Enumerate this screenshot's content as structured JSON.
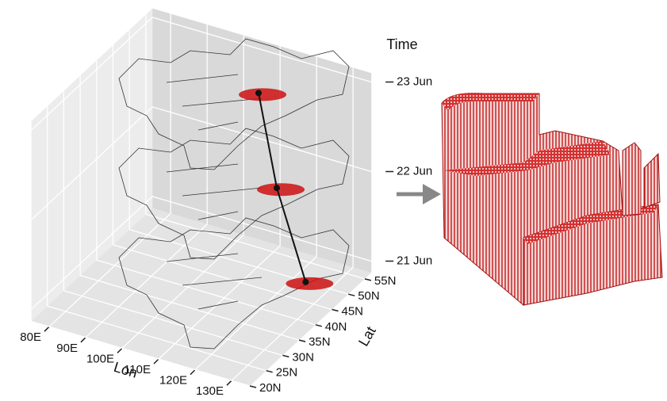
{
  "chart_data": {
    "type": "trajectory3d",
    "xlabel": "Lon",
    "ylabel": "Lat",
    "zlabel": "Time",
    "xlim": [
      75,
      135
    ],
    "xticks": [
      {
        "value": 80,
        "label": "80E"
      },
      {
        "value": 90,
        "label": "90E"
      },
      {
        "value": 100,
        "label": "100E"
      },
      {
        "value": 110,
        "label": "110E"
      },
      {
        "value": 120,
        "label": "120E"
      },
      {
        "value": 130,
        "label": "130E"
      }
    ],
    "ylim": [
      20,
      57
    ],
    "yticks": [
      {
        "value": 20,
        "label": "20N"
      },
      {
        "value": 25,
        "label": "25N"
      },
      {
        "value": 30,
        "label": "30N"
      },
      {
        "value": 35,
        "label": "35N"
      },
      {
        "value": 40,
        "label": "40N"
      },
      {
        "value": 45,
        "label": "45N"
      },
      {
        "value": 50,
        "label": "50N"
      },
      {
        "value": 55,
        "label": "55N"
      }
    ],
    "zlim": [
      20.87,
      23.1
    ],
    "zticks": [
      {
        "value": 21,
        "label": "21 Jun"
      },
      {
        "value": 22,
        "label": "22 Jun"
      },
      {
        "value": 23,
        "label": "23 Jun"
      }
    ],
    "x": [
      126,
      119,
      114
    ],
    "y": [
      47,
      46,
      46
    ],
    "z": [
      21,
      22,
      23
    ],
    "color": "#111111",
    "blob_color": "#cc1111",
    "grid": true
  }
}
